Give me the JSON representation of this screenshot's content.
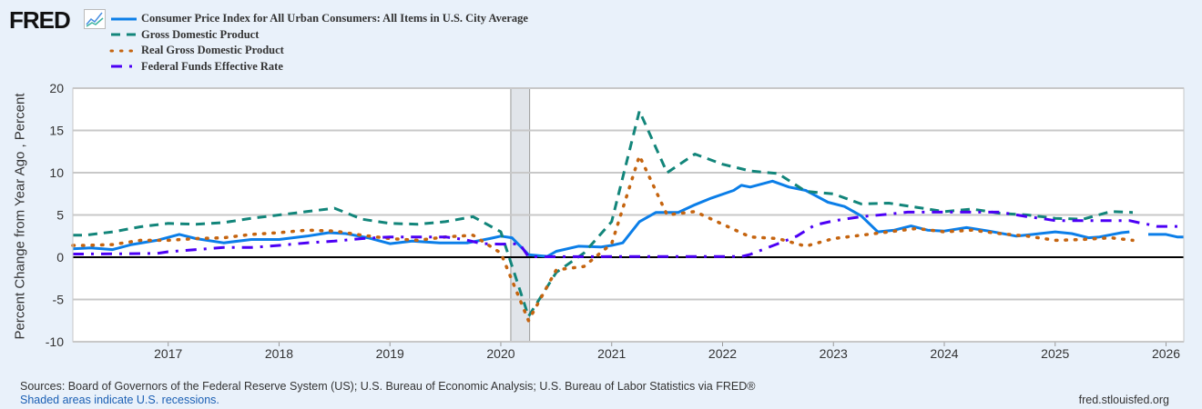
{
  "brand": {
    "logo": "FRED"
  },
  "footer": {
    "sources": "Sources: Board of Governors of the Federal Reserve System (US); U.S. Bureau of Economic Analysis; U.S. Bureau of Labor Statistics via FRED®",
    "recession_note": "Shaded areas indicate U.S. recessions.",
    "site": "fred.stlouisfed.org"
  },
  "chart_data": {
    "type": "line",
    "title": "",
    "xlabel": "",
    "ylabel": "Percent Change from Year Ago , Percent",
    "xlim": [
      2016.14,
      2026.16
    ],
    "ylim": [
      -10,
      20
    ],
    "yticks": [
      -10,
      -5,
      0,
      5,
      10,
      15,
      20
    ],
    "ytick_labels": [
      "-10",
      "-5",
      "0",
      "5",
      "10",
      "15",
      "20"
    ],
    "xticks": [
      2017,
      2018,
      2019,
      2020,
      2021,
      2022,
      2023,
      2024,
      2025,
      2026
    ],
    "xtick_labels": [
      "2017",
      "2018",
      "2019",
      "2020",
      "2021",
      "2022",
      "2023",
      "2024",
      "2025",
      "2026"
    ],
    "grid": true,
    "legend_position": "top-left",
    "recessions": [
      [
        2020.09,
        2020.26
      ]
    ],
    "colors": {
      "cpi": "#0b7ee8",
      "gdp": "#12857a",
      "rgdp": "#c5640f",
      "ffr": "#4c00f5"
    },
    "series": [
      {
        "key": "cpi",
        "name": "Consumer Price Index for All Urban Consumers: All Items in U.S. City Average",
        "style": "solid",
        "x": [
          2016.14,
          2016.3,
          2016.5,
          2016.67,
          2016.9,
          2017.1,
          2017.25,
          2017.5,
          2017.75,
          2018.0,
          2018.25,
          2018.45,
          2018.6,
          2018.8,
          2019.0,
          2019.2,
          2019.45,
          2019.7,
          2019.9,
          2020.0,
          2020.1,
          2020.25,
          2020.42,
          2020.5,
          2020.7,
          2020.9,
          2021.0,
          2021.1,
          2021.25,
          2021.4,
          2021.6,
          2021.75,
          2021.9,
          2022.1,
          2022.17,
          2022.25,
          2022.45,
          2022.6,
          2022.75,
          2022.95,
          2023.1,
          2023.25,
          2023.4,
          2023.55,
          2023.7,
          2023.85,
          2024.0,
          2024.2,
          2024.4,
          2024.65,
          2024.8,
          2025.0,
          2025.15,
          2025.3,
          2025.4,
          2025.6,
          2025.67,
          2025.75,
          2025.84,
          2026.0,
          2026.1,
          2026.16
        ],
        "y": [
          1.0,
          1.1,
          0.9,
          1.5,
          2.0,
          2.7,
          2.2,
          1.7,
          2.1,
          2.1,
          2.5,
          2.9,
          2.8,
          2.3,
          1.6,
          1.9,
          1.7,
          1.7,
          2.2,
          2.5,
          2.3,
          0.3,
          0.1,
          0.7,
          1.3,
          1.2,
          1.4,
          1.7,
          4.2,
          5.3,
          5.3,
          6.2,
          7.0,
          7.9,
          8.5,
          8.3,
          9.0,
          8.3,
          7.9,
          6.5,
          6.0,
          4.9,
          3.0,
          3.2,
          3.7,
          3.2,
          3.1,
          3.5,
          3.1,
          2.5,
          2.7,
          3.0,
          2.8,
          2.3,
          2.4,
          2.9,
          3.0,
          null,
          2.7,
          2.7,
          2.4,
          2.4
        ]
      },
      {
        "key": "gdp",
        "name": "Gross Domestic Product",
        "style": "dashed",
        "x": [
          2016.14,
          2016.25,
          2016.5,
          2016.75,
          2017.0,
          2017.25,
          2017.5,
          2017.75,
          2018.0,
          2018.25,
          2018.5,
          2018.75,
          2019.0,
          2019.25,
          2019.5,
          2019.75,
          2020.0,
          2020.25,
          2020.5,
          2020.75,
          2021.0,
          2021.25,
          2021.5,
          2021.75,
          2022.0,
          2022.25,
          2022.5,
          2022.75,
          2023.0,
          2023.25,
          2023.5,
          2023.75,
          2024.0,
          2024.25,
          2024.5,
          2024.75,
          2025.0,
          2025.25,
          2025.5,
          2025.7
        ],
        "y": [
          2.6,
          2.6,
          3.0,
          3.6,
          4.0,
          3.9,
          4.1,
          4.6,
          5.0,
          5.4,
          5.8,
          4.5,
          4.0,
          3.9,
          4.2,
          4.8,
          3.0,
          -7.0,
          -1.8,
          0.5,
          4.2,
          17.3,
          10.0,
          12.2,
          11.0,
          10.2,
          9.9,
          7.8,
          7.5,
          6.3,
          6.4,
          5.9,
          5.4,
          5.7,
          5.2,
          5.0,
          4.6,
          4.5,
          5.4,
          5.3
        ]
      },
      {
        "key": "rgdp",
        "name": "Real Gross Domestic Product",
        "style": "dotted",
        "x": [
          2016.14,
          2016.25,
          2016.5,
          2016.75,
          2017.0,
          2017.25,
          2017.5,
          2017.75,
          2018.0,
          2018.25,
          2018.5,
          2018.75,
          2019.0,
          2019.25,
          2019.5,
          2019.75,
          2020.0,
          2020.25,
          2020.5,
          2020.75,
          2021.0,
          2021.25,
          2021.5,
          2021.75,
          2022.0,
          2022.25,
          2022.5,
          2022.75,
          2023.0,
          2023.25,
          2023.5,
          2023.75,
          2024.0,
          2024.25,
          2024.5,
          2024.75,
          2025.0,
          2025.25,
          2025.5,
          2025.7
        ],
        "y": [
          1.4,
          1.4,
          1.5,
          2.0,
          2.0,
          2.2,
          2.3,
          2.7,
          2.9,
          3.2,
          3.1,
          2.6,
          2.2,
          2.0,
          2.4,
          2.6,
          0.5,
          -7.5,
          -1.5,
          -1.1,
          1.6,
          12.0,
          5.0,
          5.4,
          3.9,
          2.4,
          2.2,
          1.3,
          2.2,
          2.6,
          3.0,
          3.4,
          3.0,
          3.2,
          2.8,
          2.5,
          2.0,
          2.1,
          2.3,
          2.0
        ]
      },
      {
        "key": "ffr",
        "name": "Federal Funds Effective Rate",
        "style": "dashdot",
        "x": [
          2016.14,
          2016.5,
          2016.9,
          2017.0,
          2017.25,
          2017.5,
          2017.75,
          2018.0,
          2018.25,
          2018.5,
          2018.75,
          2019.0,
          2019.5,
          2019.67,
          2019.83,
          2020.0,
          2020.17,
          2020.25,
          2021.0,
          2022.17,
          2022.25,
          2022.5,
          2022.67,
          2022.83,
          2023.0,
          2023.25,
          2023.5,
          2023.67,
          2024.5,
          2024.75,
          2024.92,
          2025.0,
          2025.67,
          2025.75,
          2025.83,
          2025.92,
          2026.16
        ],
        "y": [
          0.38,
          0.4,
          0.45,
          0.65,
          0.9,
          1.15,
          1.15,
          1.4,
          1.7,
          1.9,
          2.2,
          2.4,
          2.4,
          2.1,
          1.6,
          1.55,
          1.58,
          0.05,
          0.08,
          0.08,
          0.33,
          1.6,
          2.5,
          3.8,
          4.3,
          4.8,
          5.1,
          5.33,
          5.33,
          4.8,
          4.5,
          4.33,
          4.33,
          4.1,
          3.9,
          3.65,
          3.64
        ]
      }
    ]
  }
}
